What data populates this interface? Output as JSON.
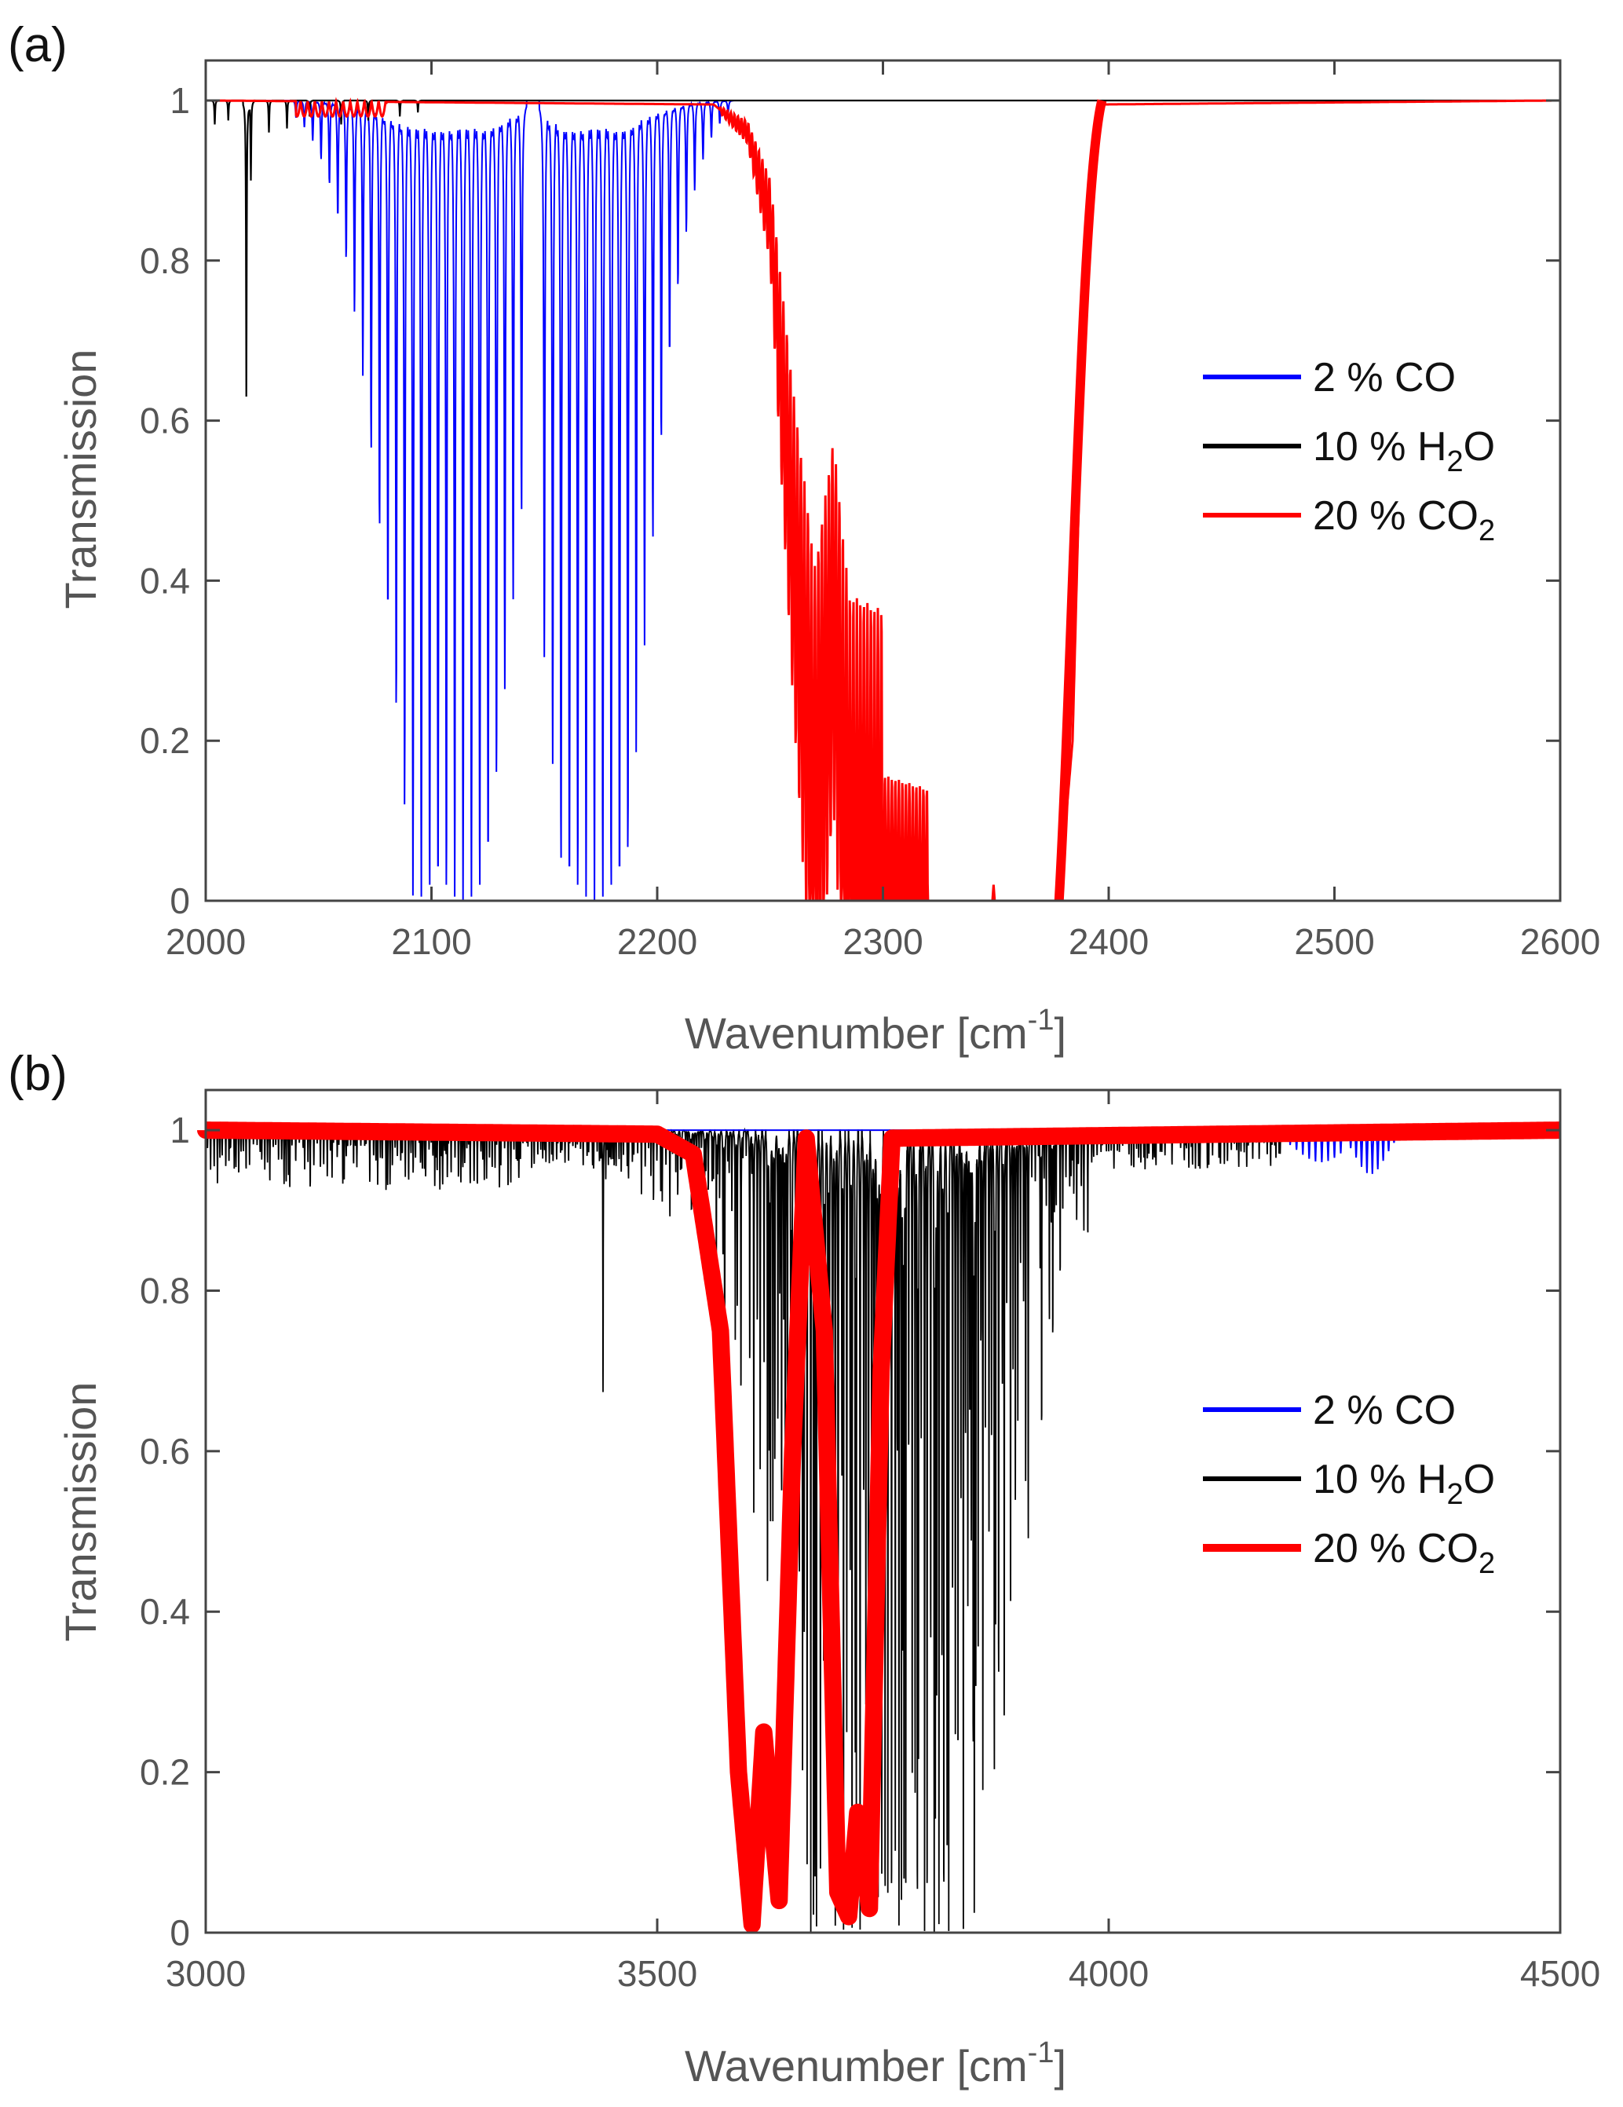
{
  "figure": {
    "background": "#ffffff"
  },
  "chart_data": [
    {
      "type": "line",
      "panel_label": "(a)",
      "xlabel": "Wavenumber [cm",
      "xlabel_sup": "-1",
      "xlabel_close": "]",
      "ylabel": "Transmission",
      "xlim": [
        2000,
        2600
      ],
      "ylim": [
        0,
        1.05
      ],
      "xticks": [
        "2000",
        "2100",
        "2200",
        "2300",
        "2400",
        "2500",
        "2600"
      ],
      "yticks": [
        "0",
        "0.2",
        "0.4",
        "0.6",
        "0.8",
        "1"
      ],
      "grid": false,
      "legend_position": "center-right",
      "legend": [
        {
          "pre": "2 % CO",
          "sub": "",
          "post": "",
          "color": "#0000ff"
        },
        {
          "pre": "10 % H",
          "sub": "2",
          "post": "O",
          "color": "#000000"
        },
        {
          "pre": "20 % CO",
          "sub": "2",
          "post": "",
          "color": "#ff0000"
        }
      ],
      "series": [
        {
          "name": "2 % CO",
          "color": "#0000ff",
          "description": "CO fundamental band: P-branch 2040-2142 and R-branch 2150-2230, dense rotational lines reaching ~0 near band centers",
          "branches": [
            {
              "start": 2040,
              "end": 2142,
              "spacing": 3.7,
              "center": 2108,
              "width": 20
            },
            {
              "start": 2150,
              "end": 2232,
              "spacing": 3.7,
              "center": 2172,
              "width": 17
            }
          ]
        },
        {
          "name": "10 % H2O",
          "color": "#000000",
          "description": "weak sparse water lines near 2000-2100, deepest ~0.63 at 2018",
          "lines": [
            [
              2004,
              0.97
            ],
            [
              2010,
              0.975
            ],
            [
              2018,
              0.63
            ],
            [
              2020,
              0.9
            ],
            [
              2028,
              0.96
            ],
            [
              2036,
              0.965
            ],
            [
              2046,
              0.98
            ],
            [
              2060,
              0.97
            ],
            [
              2072,
              0.975
            ],
            [
              2086,
              0.98
            ],
            [
              2094,
              0.985
            ]
          ]
        },
        {
          "name": "20 % CO2",
          "color": "#ff0000",
          "description": "CO2 asymmetric stretch band: dense lines 2230-2320, saturated 2320-2378, sharp recovery to 1 at ~2395",
          "envelope": [
            [
              2000,
              1.0
            ],
            [
              2225,
              0.995
            ],
            [
              2240,
              0.96
            ],
            [
              2250,
              0.85
            ],
            [
              2260,
              0.45
            ],
            [
              2270,
              0.1
            ],
            [
              2278,
              0.35
            ],
            [
              2285,
              0.05
            ],
            [
              2300,
              0.02
            ],
            [
              2320,
              0.0
            ],
            [
              2378,
              0.0
            ],
            [
              2384,
              0.2
            ],
            [
              2390,
              0.85
            ],
            [
              2396,
              0.995
            ],
            [
              2600,
              1.0
            ]
          ]
        }
      ]
    },
    {
      "type": "line",
      "panel_label": "(b)",
      "xlabel": "Wavenumber [cm",
      "xlabel_sup": "-1",
      "xlabel_close": "]",
      "ylabel": "Transmission",
      "xlim": [
        3000,
        4500
      ],
      "ylim": [
        0,
        1.05
      ],
      "xticks": [
        "3000",
        "3500",
        "4000",
        "4500"
      ],
      "yticks": [
        "0",
        "0.2",
        "0.4",
        "0.6",
        "0.8",
        "1"
      ],
      "grid": false,
      "legend_position": "center-right",
      "legend": [
        {
          "pre": "2 % CO",
          "sub": "",
          "post": "",
          "color": "#0000ff"
        },
        {
          "pre": "10 % H",
          "sub": "2",
          "post": "O",
          "color": "#000000"
        },
        {
          "pre": "20 % CO",
          "sub": "2",
          "post": "",
          "color": "#ff0000"
        }
      ],
      "series": [
        {
          "name": "2 % CO",
          "color": "#0000ff",
          "description": "CO first overtone band, weak lines 4180-4320 with minimum ~0.94",
          "branches": [
            {
              "start": 4180,
              "end": 4262,
              "spacing": 7,
              "center": 4235,
              "depth": 0.04,
              "width": 30
            },
            {
              "start": 4268,
              "end": 4330,
              "spacing": 6,
              "center": 4290,
              "depth": 0.055,
              "width": 18
            }
          ]
        },
        {
          "name": "10 % H2O",
          "color": "#000000",
          "description": "H2O stretch band, many lines 3000-4200, strongest 3550-3950 reaching 0",
          "center": 3760,
          "width": 150
        },
        {
          "name": "20 % CO2",
          "color": "#ff0000",
          "description": "CO2 combination bands, two saturated dips near 3610 and 3715",
          "envelope": [
            [
              3000,
              1.0
            ],
            [
              3500,
              0.995
            ],
            [
              3540,
              0.97
            ],
            [
              3570,
              0.75
            ],
            [
              3590,
              0.2
            ],
            [
              3605,
              0.01
            ],
            [
              3618,
              0.25
            ],
            [
              3635,
              0.04
            ],
            [
              3650,
              0.6
            ],
            [
              3665,
              0.99
            ],
            [
              3685,
              0.75
            ],
            [
              3700,
              0.05
            ],
            [
              3712,
              0.02
            ],
            [
              3722,
              0.15
            ],
            [
              3735,
              0.03
            ],
            [
              3748,
              0.7
            ],
            [
              3760,
              0.99
            ],
            [
              4500,
              1.0
            ]
          ]
        }
      ]
    }
  ]
}
